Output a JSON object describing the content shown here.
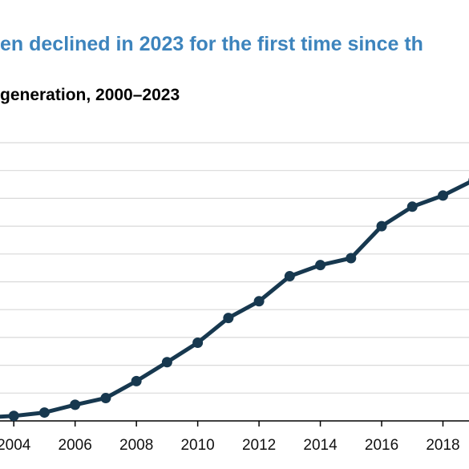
{
  "header": {
    "title": "en declined in 2023 for the first time since th",
    "subtitle": "generation, 2000–2023"
  },
  "colors": {
    "title": "#3d84bd",
    "line": "#17384f",
    "grid": "#d9d9d9",
    "axis": "#000000"
  },
  "chart_data": {
    "type": "line",
    "title": "en declined in 2023 for the first time since th",
    "subtitle": "generation, 2000–2023",
    "xlabel": "",
    "ylabel": "",
    "grid": true,
    "x_visible_range": [
      2003.55,
      2018.85
    ],
    "y_scale_note": "y axis values are relative (no tick labels visible); 0 = axis baseline, 10 = top gridline",
    "ylim": [
      0,
      10
    ],
    "xticks": [
      "2004",
      "2006",
      "2008",
      "2010",
      "2012",
      "2014",
      "2016",
      "2018"
    ],
    "series": [
      {
        "x": [
          2003,
          2004,
          2005,
          2006,
          2007,
          2008,
          2009,
          2010,
          2011,
          2012,
          2013,
          2014,
          2015,
          2016,
          2017,
          2018,
          2019
        ],
        "values": [
          0.12,
          0.18,
          0.3,
          0.58,
          0.82,
          1.43,
          2.11,
          2.81,
          3.7,
          4.3,
          5.2,
          5.6,
          5.85,
          7.0,
          7.7,
          8.1,
          8.65
        ]
      }
    ]
  }
}
